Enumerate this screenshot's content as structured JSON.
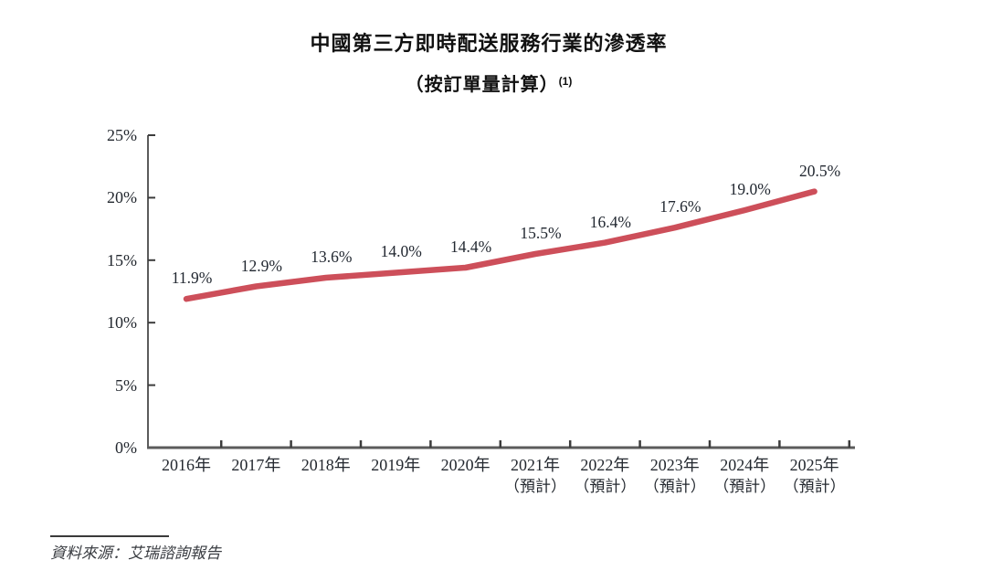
{
  "page": {
    "title": "中國第三方即時配送服務行業的滲透率",
    "subtitle": "（按訂單量計算）",
    "subtitle_footnote": "(1)",
    "source": "資料來源：艾瑞諮詢報告"
  },
  "chart_data": {
    "type": "line",
    "title": "中國第三方即時配送服務行業的滲透率（按訂單量計算）(1)",
    "categories": [
      "2016年",
      "2017年",
      "2018年",
      "2019年",
      "2020年",
      "2021年",
      "2022年",
      "2023年",
      "2024年",
      "2025年"
    ],
    "category_sublabels": [
      "",
      "",
      "",
      "",
      "",
      "（預計）",
      "（預計）",
      "（預計）",
      "（預計）",
      "（預計）"
    ],
    "values": [
      11.9,
      12.9,
      13.6,
      14.0,
      14.4,
      15.5,
      16.4,
      17.6,
      19.0,
      20.5
    ],
    "data_labels": [
      "11.9%",
      "12.9%",
      "13.6%",
      "14.0%",
      "14.4%",
      "15.5%",
      "16.4%",
      "17.6%",
      "19.0%",
      "20.5%"
    ],
    "y_tick_labels": [
      "0%",
      "5%",
      "10%",
      "15%",
      "20%",
      "25%"
    ],
    "y_tick_values": [
      0,
      5,
      10,
      15,
      20,
      25
    ],
    "ylim": [
      0,
      25
    ],
    "xlabel": "",
    "ylabel": "",
    "grid": false,
    "legend": "none",
    "line_color": "#cd4f5a",
    "axis_color": "#5b5b5b",
    "tick_color": "#3c3c3c",
    "text_color": "#23282f"
  }
}
